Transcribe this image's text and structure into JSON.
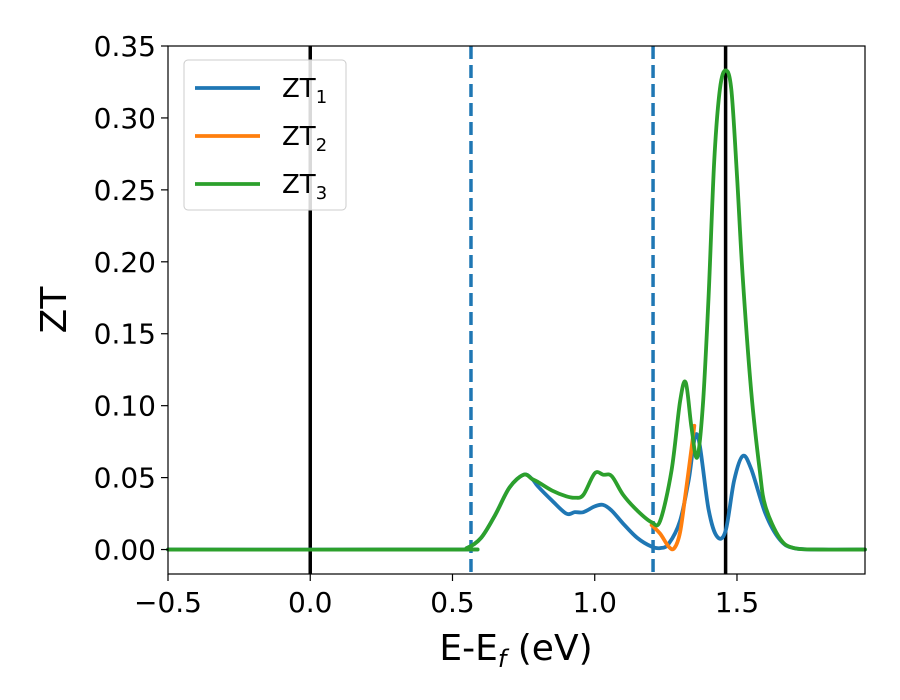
{
  "chart_data": {
    "type": "line",
    "title": "",
    "xlabel": {
      "base": "E-E",
      "sub": "f",
      "suffix": " (eV)"
    },
    "ylabel": "ZT",
    "xlim": [
      -0.5,
      1.95
    ],
    "ylim": [
      -0.017,
      0.35
    ],
    "xticks": [
      -0.5,
      0.0,
      0.5,
      1.0,
      1.5
    ],
    "xtick_labels": [
      "−0.5",
      "0.0",
      "0.5",
      "1.0",
      "1.5"
    ],
    "yticks": [
      0.0,
      0.05,
      0.1,
      0.15,
      0.2,
      0.25,
      0.3,
      0.35
    ],
    "ytick_labels": [
      "0.00",
      "0.05",
      "0.10",
      "0.15",
      "0.20",
      "0.25",
      "0.30",
      "0.35"
    ],
    "grid": false,
    "legend_position": "top-left",
    "vlines": [
      {
        "x": 0.0,
        "style": "solid",
        "color": "#000000"
      },
      {
        "x": 0.565,
        "style": "dashed",
        "color": "#1f77b4"
      },
      {
        "x": 1.205,
        "style": "dashed",
        "color": "#1f77b4"
      },
      {
        "x": 1.46,
        "style": "solid",
        "color": "#000000"
      }
    ],
    "series": [
      {
        "name": {
          "base": "ZT",
          "sub": "1"
        },
        "color": "#1f77b4",
        "x": [
          -0.5,
          0.5,
          0.55,
          0.6,
          0.65,
          0.7,
          0.75,
          0.78,
          0.8,
          0.85,
          0.9,
          0.93,
          0.96,
          1.0,
          1.03,
          1.06,
          1.1,
          1.15,
          1.2,
          1.23,
          1.26,
          1.3,
          1.33,
          1.36,
          1.4,
          1.43,
          1.46,
          1.49,
          1.52,
          1.55,
          1.6,
          1.65,
          1.7,
          1.8,
          1.95
        ],
        "y": [
          0.0,
          0.0,
          0.001,
          0.008,
          0.024,
          0.043,
          0.052,
          0.049,
          0.044,
          0.034,
          0.025,
          0.026,
          0.026,
          0.03,
          0.031,
          0.027,
          0.018,
          0.008,
          0.002,
          0.001,
          0.004,
          0.02,
          0.048,
          0.08,
          0.028,
          0.009,
          0.013,
          0.048,
          0.065,
          0.056,
          0.025,
          0.007,
          0.001,
          0.0,
          0.0
        ]
      },
      {
        "name": {
          "base": "ZT",
          "sub": "2"
        },
        "color": "#ff7f0e",
        "x": [
          1.2,
          1.23,
          1.26,
          1.28,
          1.3,
          1.32,
          1.34,
          1.35
        ],
        "y": [
          0.017,
          0.011,
          0.002,
          0.001,
          0.012,
          0.04,
          0.07,
          0.086
        ]
      },
      {
        "name": {
          "base": "ZT",
          "sub": "3"
        },
        "color": "#2ca02c",
        "x": [
          -0.5,
          0.5,
          0.55,
          0.6,
          0.65,
          0.7,
          0.75,
          0.78,
          0.8,
          0.85,
          0.9,
          0.93,
          0.96,
          1.0,
          1.03,
          1.06,
          1.1,
          1.15,
          1.2,
          1.23,
          1.27,
          1.3,
          1.32,
          1.34,
          1.36,
          1.38,
          1.4,
          1.42,
          1.44,
          1.46,
          1.48,
          1.5,
          1.52,
          1.55,
          1.58,
          1.6,
          1.65,
          1.7,
          1.8,
          1.95
        ],
        "y": [
          0.0,
          0.0,
          0.001,
          0.008,
          0.024,
          0.043,
          0.052,
          0.049,
          0.047,
          0.041,
          0.037,
          0.036,
          0.038,
          0.053,
          0.052,
          0.051,
          0.038,
          0.027,
          0.019,
          0.02,
          0.055,
          0.103,
          0.116,
          0.085,
          0.064,
          0.1,
          0.175,
          0.27,
          0.32,
          0.333,
          0.32,
          0.26,
          0.19,
          0.11,
          0.055,
          0.03,
          0.008,
          0.001,
          0.0,
          0.0
        ]
      }
    ]
  }
}
